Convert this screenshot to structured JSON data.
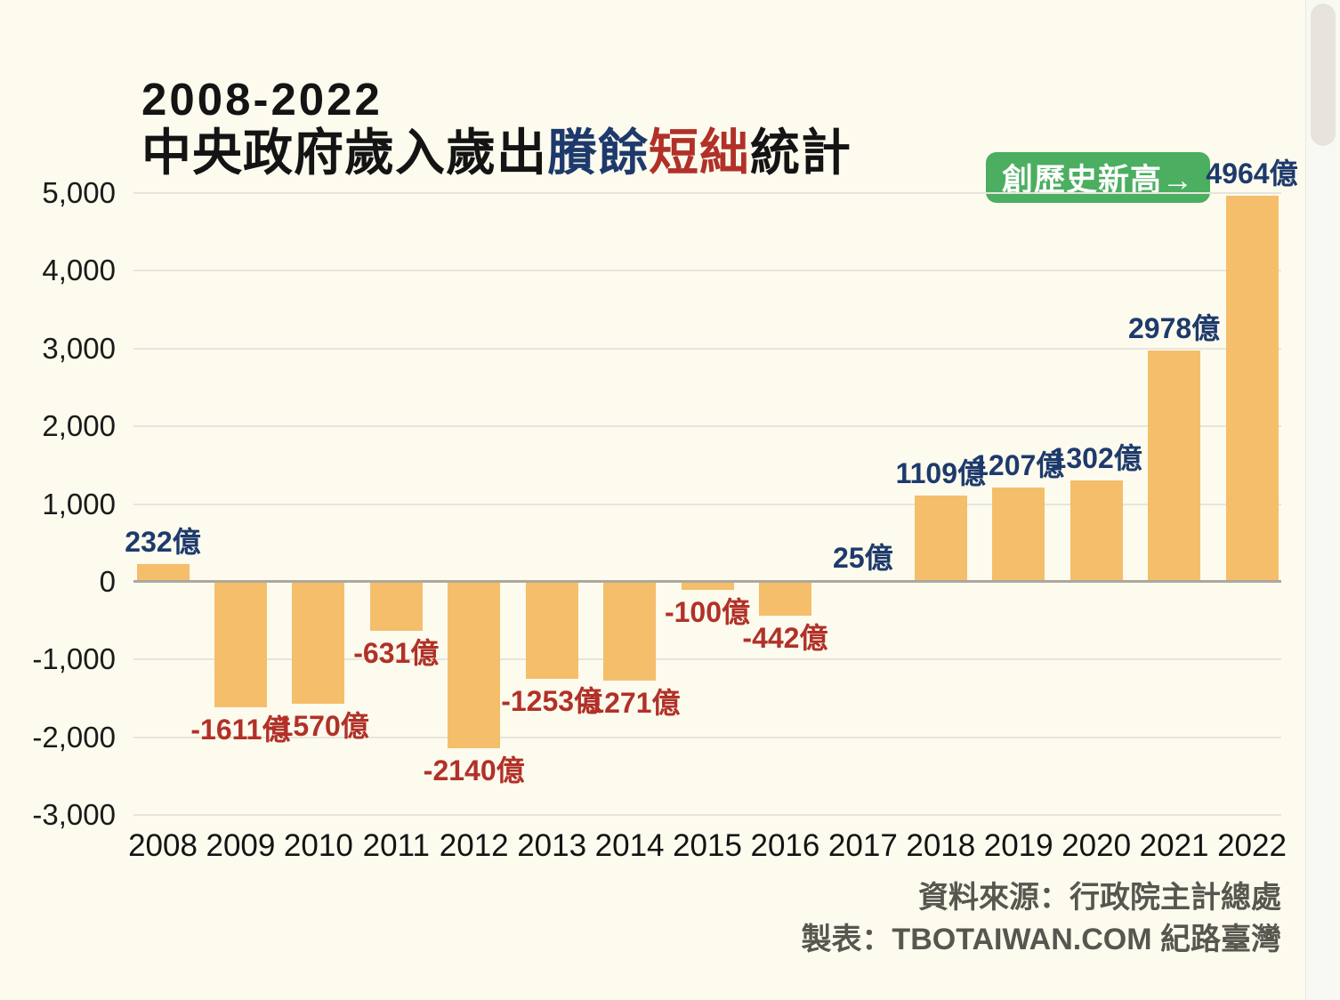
{
  "header": {
    "title_line1": "2008-2022",
    "title_line2_prefix": "中央政府歲入歲出",
    "title_line2_highlight_blue": "賸餘",
    "title_line2_highlight_red": "短絀",
    "title_line2_suffix": "統計"
  },
  "badge": {
    "label": "創歷史新高→",
    "background": "#4BAE60",
    "text_color": "#FFFFFF"
  },
  "footer": {
    "source_line1": "資料來源：行政院主計總處",
    "source_line2": "製表：TBOTAIWAN.COM 紀路臺灣"
  },
  "chart_data": {
    "type": "bar",
    "title": "2008-2022 中央政府歲入歲出賸餘短絀統計",
    "categories": [
      "2008",
      "2009",
      "2010",
      "2011",
      "2012",
      "2013",
      "2014",
      "2015",
      "2016",
      "2017",
      "2018",
      "2019",
      "2020",
      "2021",
      "2022"
    ],
    "values": [
      232,
      -1611,
      -1570,
      -631,
      -2140,
      -1253,
      -1271,
      -100,
      -442,
      25,
      1109,
      1207,
      1302,
      2978,
      4964
    ],
    "bar_labels": [
      "232億",
      "-1611億",
      "-1570億",
      "-631億",
      "-2140億",
      "-1253億",
      "-1271億",
      "-100億",
      "-442億",
      "25億",
      "1109億",
      "1207億",
      "1302億",
      "2978億",
      "4964億"
    ],
    "unit": "億",
    "ylim": [
      -3000,
      5000
    ],
    "ytick_step": 1000,
    "ytick_labels": [
      "5,000",
      "4,000",
      "3,000",
      "2,000",
      "1,000",
      "0",
      "-1,000",
      "-2,000",
      "-3,000"
    ],
    "grid": true,
    "legend_position": "none",
    "annotation_2022": "創歷史新高→",
    "colors": {
      "bar": "#F5BE6B",
      "positive_label": "#1E3A6C",
      "negative_label": "#B13128",
      "gridline": "#E7E5DB",
      "zero_line": "#ACA89E",
      "background": "#FCFBEE"
    }
  }
}
